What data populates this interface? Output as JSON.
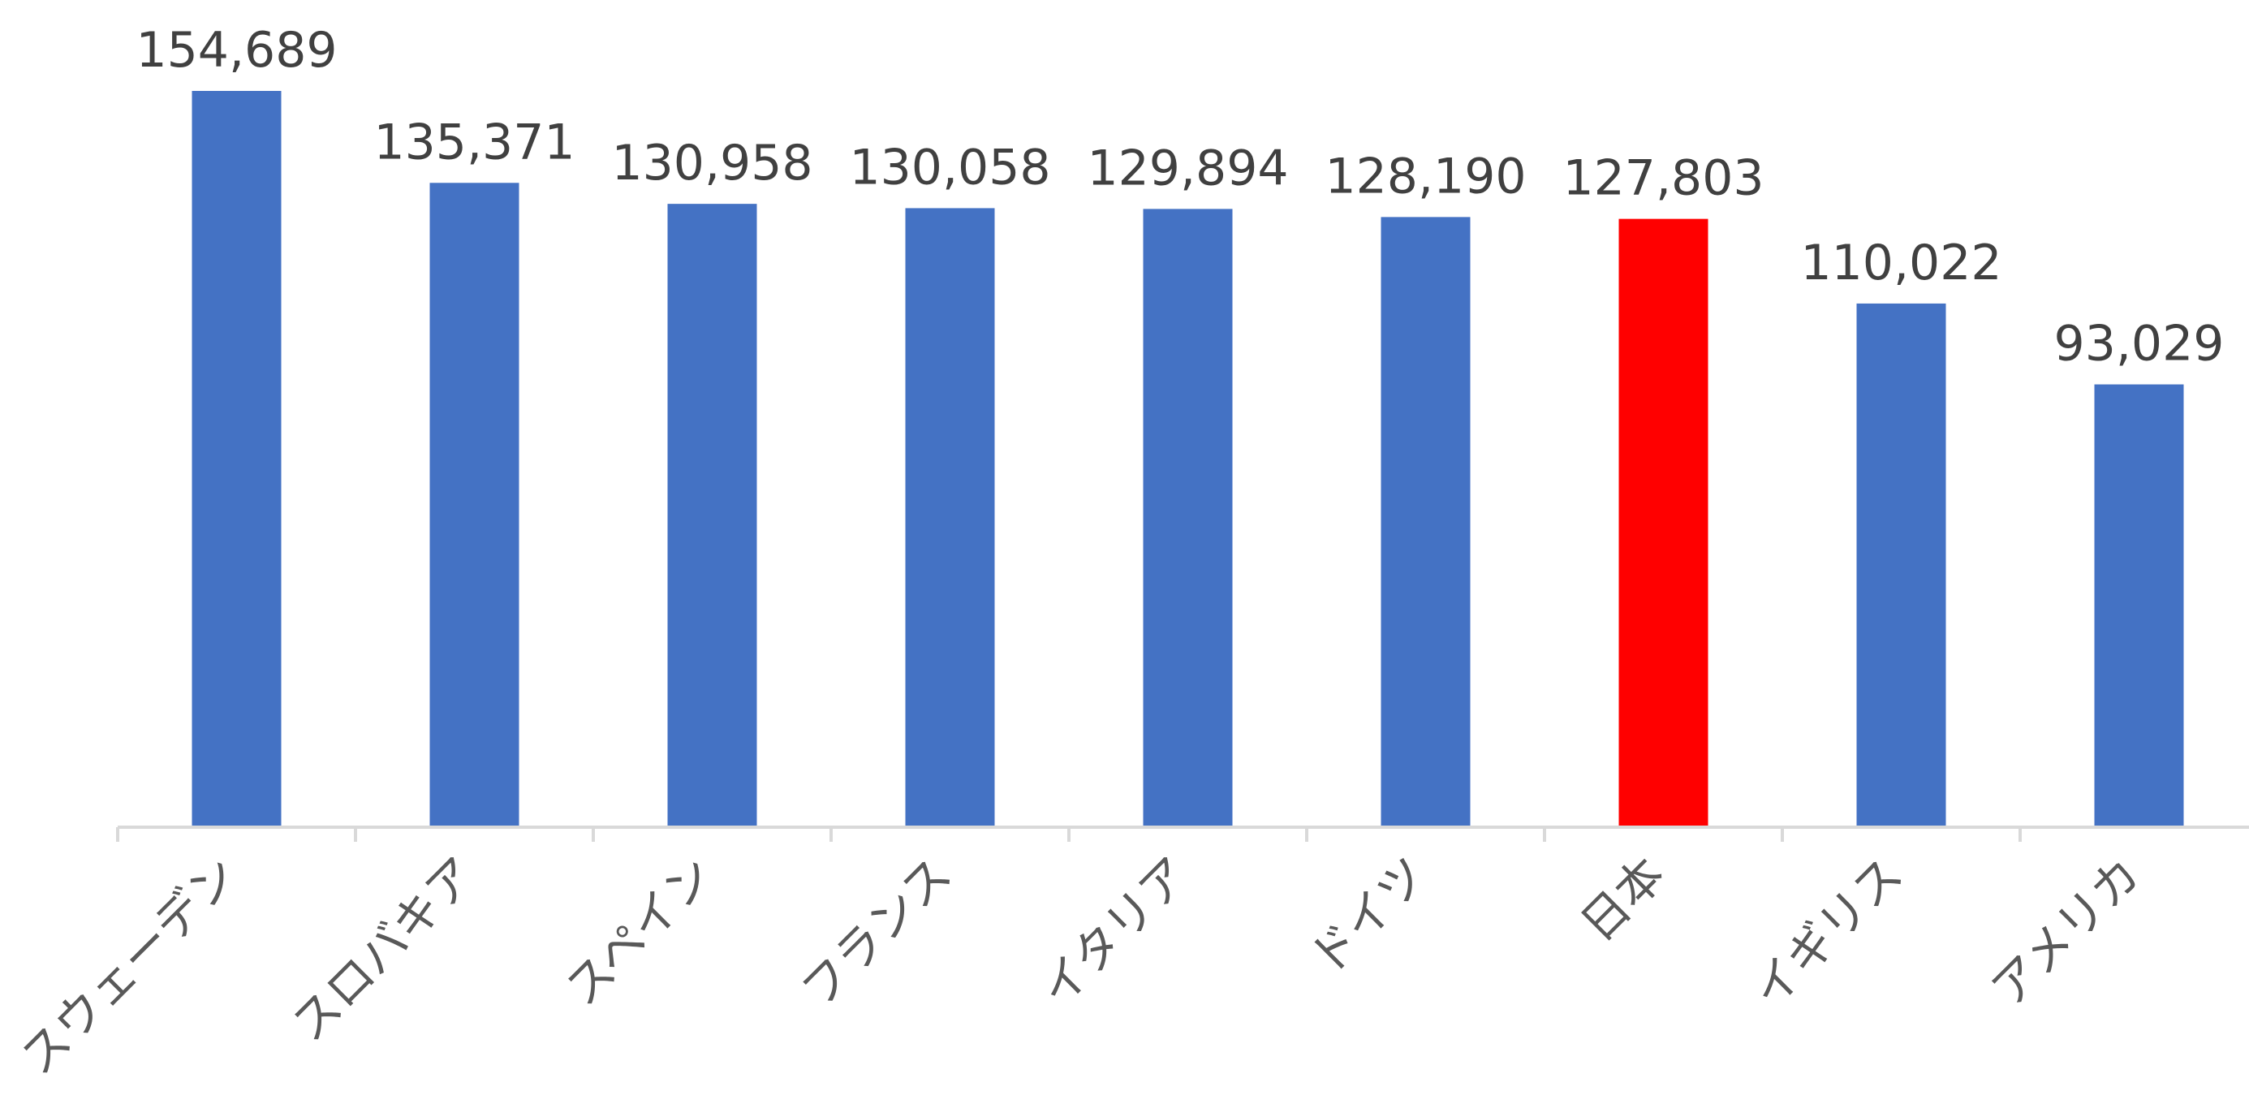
{
  "chart_data": {
    "type": "bar",
    "title": "",
    "xlabel": "",
    "ylabel": "",
    "ylim": [
      0,
      154689
    ],
    "grid": false,
    "legend": "none",
    "categories": [
      "スウェーデン",
      "スロバキア",
      "スペイン",
      "フランス",
      "イタリア",
      "ドイツ",
      "日本",
      "イギリス",
      "アメリカ"
    ],
    "values": [
      154689,
      135371,
      130958,
      130058,
      129894,
      128190,
      127803,
      110022,
      93029
    ],
    "value_labels": [
      "154,689",
      "135,371",
      "130,958",
      "130,058",
      "129,894",
      "128,190",
      "127,803",
      "110,022",
      "93,029"
    ],
    "colors": {
      "default": "#4472C4",
      "highlight": "#FF0000",
      "axis": "#D9D9D9"
    },
    "highlight_category": "日本"
  }
}
